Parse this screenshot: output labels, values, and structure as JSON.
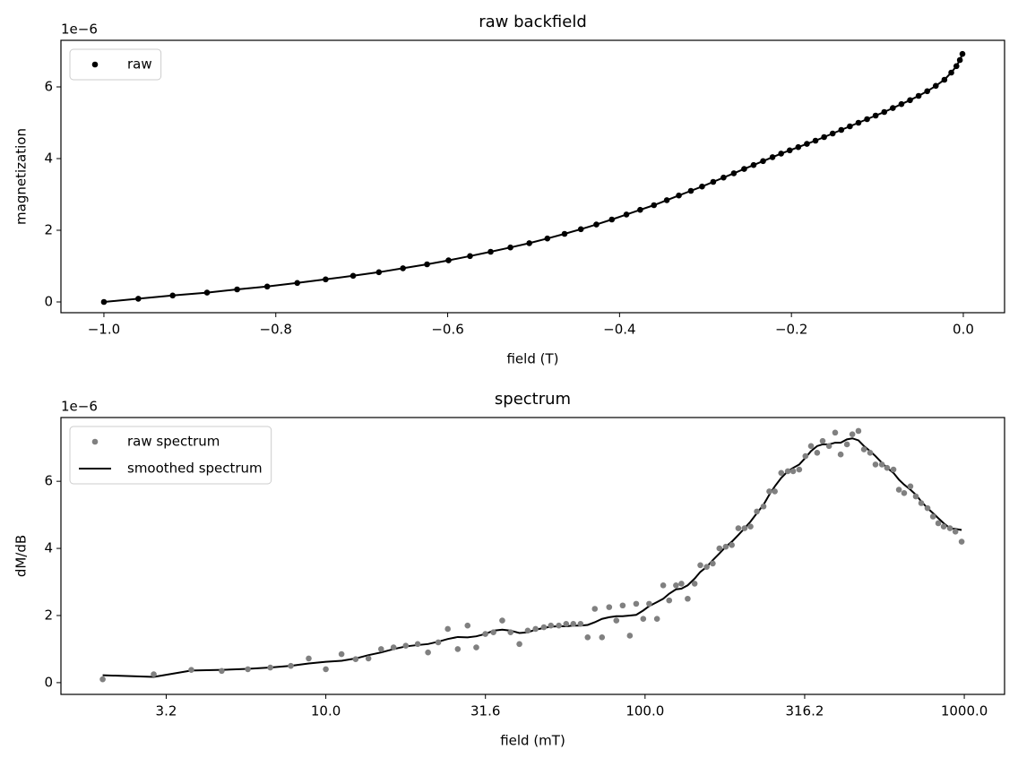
{
  "chart_data": [
    {
      "type": "scatter",
      "title": "raw backfield",
      "xlabel": "field (T)",
      "ylabel": "magnetization",
      "offset_label": "1e−6",
      "x": [
        -1.0,
        -0.96,
        -0.92,
        -0.88,
        -0.845,
        -0.81,
        -0.775,
        -0.742,
        -0.71,
        -0.68,
        -0.652,
        -0.624,
        -0.599,
        -0.574,
        -0.55,
        -0.527,
        -0.505,
        -0.484,
        -0.464,
        -0.445,
        -0.427,
        -0.409,
        -0.392,
        -0.376,
        -0.36,
        -0.345,
        -0.331,
        -0.317,
        -0.304,
        -0.291,
        -0.279,
        -0.267,
        -0.255,
        -0.244,
        -0.233,
        -0.222,
        -0.212,
        -0.202,
        -0.192,
        -0.182,
        -0.172,
        -0.162,
        -0.152,
        -0.142,
        -0.132,
        -0.122,
        -0.112,
        -0.102,
        -0.092,
        -0.082,
        -0.072,
        -0.062,
        -0.052,
        -0.042,
        -0.032,
        -0.022,
        -0.014,
        -0.008,
        -0.004,
        -0.001
      ],
      "series": [
        {
          "name": "raw",
          "color": "#000000",
          "markers": true,
          "line": true,
          "values": [
            0,
            0.09,
            0.18,
            0.26,
            0.35,
            0.43,
            0.53,
            0.63,
            0.73,
            0.83,
            0.94,
            1.05,
            1.16,
            1.28,
            1.4,
            1.52,
            1.64,
            1.77,
            1.9,
            2.03,
            2.16,
            2.3,
            2.44,
            2.57,
            2.7,
            2.84,
            2.97,
            3.1,
            3.22,
            3.35,
            3.47,
            3.59,
            3.71,
            3.82,
            3.93,
            4.04,
            4.14,
            4.23,
            4.32,
            4.41,
            4.5,
            4.6,
            4.7,
            4.8,
            4.9,
            5.0,
            5.1,
            5.2,
            5.3,
            5.41,
            5.52,
            5.63,
            5.75,
            5.88,
            6.03,
            6.2,
            6.4,
            6.58,
            6.75,
            6.92
          ]
        }
      ],
      "xlim": [
        -1.05,
        0.048
      ],
      "ylim": [
        -0.3,
        7.3
      ],
      "xticks": [
        {
          "value": -1.0,
          "label": "−1.0"
        },
        {
          "value": -0.8,
          "label": "−0.8"
        },
        {
          "value": -0.6,
          "label": "−0.6"
        },
        {
          "value": -0.4,
          "label": "−0.4"
        },
        {
          "value": -0.2,
          "label": "−0.2"
        },
        {
          "value": 0,
          "label": "0.0"
        }
      ],
      "yticks": [
        0,
        2,
        4,
        6
      ],
      "xscale": "linear",
      "legend": "upper left",
      "grid": false
    },
    {
      "type": "scatter",
      "title": "spectrum",
      "xlabel": "field (mT)",
      "ylabel": "dM/dB",
      "offset_label": "1e−6",
      "x": [
        2.0,
        2.89,
        3.79,
        4.72,
        5.7,
        6.7,
        7.77,
        8.84,
        10.0,
        11.2,
        12.4,
        13.6,
        14.9,
        16.3,
        17.8,
        19.4,
        20.9,
        22.5,
        24.1,
        25.9,
        27.8,
        29.6,
        31.6,
        33.5,
        35.7,
        37.9,
        40.4,
        42.9,
        45.4,
        48.2,
        50.7,
        53.7,
        56.6,
        59.6,
        62.8,
        66.1,
        69.6,
        73.3,
        77.2,
        81.3,
        85.1,
        89.6,
        93.8,
        98.7,
        103,
        109,
        114,
        119,
        125,
        130,
        136,
        143,
        149,
        156,
        163,
        171,
        179,
        187,
        196,
        205,
        214,
        224,
        235,
        245,
        255,
        267,
        280,
        291,
        304,
        318,
        331,
        346,
        360,
        377,
        394,
        410,
        429,
        446,
        466,
        485,
        507,
        527,
        552,
        573,
        600,
        624,
        648,
        678,
        705,
        733,
        767,
        798,
        829,
        862,
        902,
        938,
        981
      ],
      "series": [
        {
          "name": "raw spectrum",
          "color": "#808080",
          "markers": true,
          "line": false,
          "values": [
            0.1,
            0.25,
            0.38,
            0.35,
            0.4,
            0.45,
            0.5,
            0.72,
            0.4,
            0.85,
            0.7,
            0.72,
            1.0,
            1.05,
            1.1,
            1.15,
            0.9,
            1.2,
            1.6,
            1.0,
            1.7,
            1.05,
            1.45,
            1.5,
            1.85,
            1.5,
            1.15,
            1.55,
            1.6,
            1.65,
            1.7,
            1.7,
            1.75,
            1.75,
            1.75,
            1.35,
            2.2,
            1.35,
            2.25,
            1.85,
            2.3,
            1.4,
            2.35,
            1.9,
            2.35,
            1.9,
            2.9,
            2.45,
            2.9,
            2.95,
            2.5,
            2.95,
            3.5,
            3.45,
            3.55,
            4.0,
            4.05,
            4.1,
            4.6,
            4.6,
            4.65,
            5.1,
            5.25,
            5.7,
            5.7,
            6.25,
            6.3,
            6.3,
            6.35,
            6.75,
            7.05,
            6.85,
            7.2,
            7.05,
            7.45,
            6.8,
            7.1,
            7.4,
            7.5,
            6.95,
            6.85,
            6.5,
            6.5,
            6.4,
            6.35,
            5.75,
            5.65,
            5.85,
            5.55,
            5.35,
            5.2,
            4.95,
            4.75,
            4.65,
            4.6,
            4.5,
            4.2
          ]
        },
        {
          "name": "smoothed spectrum",
          "color": "#000000",
          "markers": false,
          "line": true,
          "values": [
            0.22,
            0.17,
            0.36,
            0.38,
            0.41,
            0.45,
            0.5,
            0.57,
            0.62,
            0.65,
            0.72,
            0.82,
            0.9,
            1.0,
            1.08,
            1.12,
            1.15,
            1.22,
            1.3,
            1.36,
            1.35,
            1.38,
            1.45,
            1.55,
            1.58,
            1.55,
            1.48,
            1.5,
            1.58,
            1.63,
            1.67,
            1.68,
            1.68,
            1.7,
            1.7,
            1.72,
            1.8,
            1.9,
            1.95,
            1.98,
            1.98,
            2.0,
            2.02,
            2.15,
            2.28,
            2.4,
            2.5,
            2.65,
            2.78,
            2.8,
            2.9,
            3.1,
            3.3,
            3.45,
            3.65,
            3.85,
            4.05,
            4.2,
            4.4,
            4.6,
            4.8,
            5.05,
            5.3,
            5.6,
            5.85,
            6.1,
            6.3,
            6.4,
            6.5,
            6.7,
            6.9,
            7.05,
            7.1,
            7.1,
            7.15,
            7.15,
            7.25,
            7.28,
            7.22,
            7.05,
            6.9,
            6.75,
            6.55,
            6.4,
            6.25,
            6.05,
            5.9,
            5.75,
            5.6,
            5.4,
            5.2,
            5.05,
            4.9,
            4.75,
            4.6,
            4.58,
            4.55
          ]
        }
      ],
      "xlim": [
        1.48,
        1337
      ],
      "ylim": [
        -0.35,
        7.9
      ],
      "xticks": [
        {
          "value": 3.1623,
          "label": "3.2"
        },
        {
          "value": 10,
          "label": "10.0"
        },
        {
          "value": 31.623,
          "label": "31.6"
        },
        {
          "value": 100,
          "label": "100.0"
        },
        {
          "value": 316.23,
          "label": "316.2"
        },
        {
          "value": 1000,
          "label": "1000.0"
        }
      ],
      "yticks": [
        0,
        2,
        4,
        6
      ],
      "xscale": "log",
      "legend": "upper left",
      "grid": false
    }
  ]
}
